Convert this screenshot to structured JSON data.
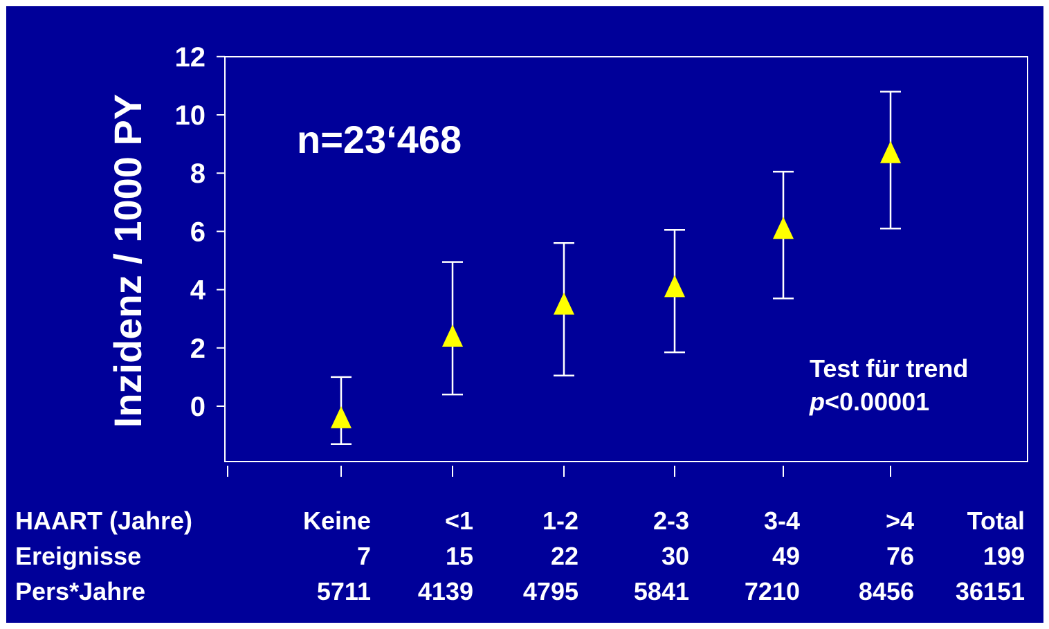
{
  "annotations": {
    "n_label": "n=23‘468",
    "trend_title": "Test für trend",
    "trend_p_italic": "p",
    "trend_p_value": "<0.00001"
  },
  "colors": {
    "background": "#000099",
    "marker": "#ffff00",
    "text": "#ffffff"
  },
  "chart_data": {
    "type": "scatter",
    "title": "",
    "xlabel": "",
    "ylabel": "Inzidenz / 1000 PY",
    "categories": [
      "Keine",
      "<1",
      "1-2",
      "2-3",
      "3-4",
      ">4"
    ],
    "ylim": [
      -1.8,
      12
    ],
    "yticks": [
      0,
      2,
      4,
      6,
      8,
      10,
      12
    ],
    "grid": false,
    "series": [
      {
        "marker": "triangle",
        "values": [
          -0.4,
          2.4,
          3.5,
          4.1,
          6.1,
          8.7
        ],
        "lower": [
          -1.3,
          0.4,
          1.05,
          1.85,
          3.7,
          6.1
        ],
        "upper": [
          1.0,
          4.95,
          5.6,
          6.05,
          8.05,
          10.8
        ]
      }
    ]
  },
  "table": {
    "rows": [
      {
        "label": "HAART (Jahre)",
        "cells": [
          "Keine",
          "<1",
          "1-2",
          "2-3",
          "3-4",
          ">4",
          "Total"
        ]
      },
      {
        "label": "Ereignisse",
        "cells": [
          "7",
          "15",
          "22",
          "30",
          "49",
          "76",
          "199"
        ]
      },
      {
        "label": "Pers*Jahre",
        "cells": [
          "5711",
          "4139",
          "4795",
          "5841",
          "7210",
          "8456",
          "36151"
        ]
      }
    ]
  }
}
